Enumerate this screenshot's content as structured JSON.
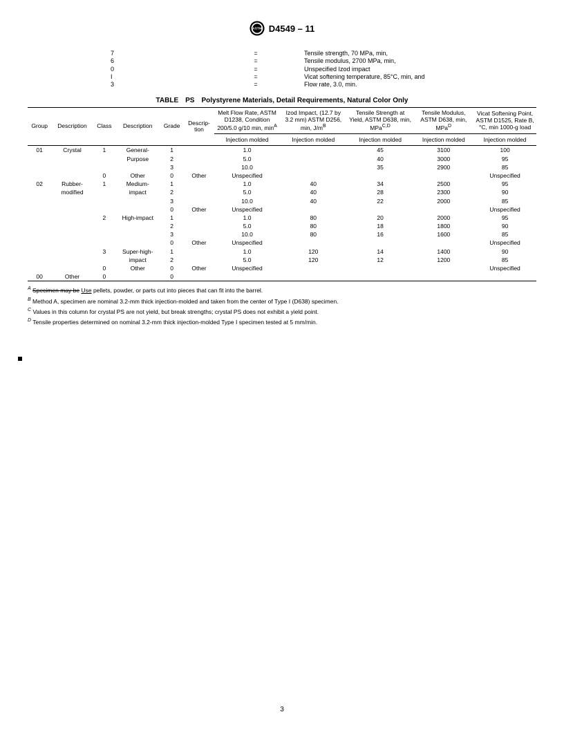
{
  "header": {
    "standard": "D4549 – 11"
  },
  "callouts": [
    {
      "code": "7",
      "eq": "=",
      "desc": "Tensile strength, 70 MPa, min,"
    },
    {
      "code": "6",
      "eq": "=",
      "desc": "Tensile modulus, 2700 MPa, min,"
    },
    {
      "code": "0",
      "eq": "=",
      "desc": "Unspecified Izod impact"
    },
    {
      "code": "I",
      "eq": "=",
      "desc": "Vicat softening temperature, 85°C, min, and"
    },
    {
      "code": "3",
      "eq": "=",
      "desc": "Flow rate, 3.0, min."
    }
  ],
  "table": {
    "caption_label": "TABLE",
    "caption_code": "PS",
    "caption_title": "Polystyrene Materials, Detail Requirements, Natural Color Only",
    "headers1": {
      "group": "Group",
      "desc1": "Description",
      "class": "Class",
      "desc2": "Description",
      "grade": "Grade",
      "desc3": "Descrip-\ntion",
      "melt": "Melt Flow Rate, ASTM D1238, Condition 200/5.0 g/10 min, min",
      "melt_sup": "A",
      "izod": "Izod Impact, (12.7 by 3.2 mm) ASTM D256, min, J/m",
      "izod_sup": "B",
      "tstr": "Tensile Strength at Yield, ASTM D638, min, MPa",
      "tstr_sup": "C,D",
      "tmod": "Tensile Modulus, ASTM D638, min, MPa",
      "tmod_sup": "D",
      "vicat": "Vicat Softening Point, ASTM D1525, Rate B, °C, min 1000-g load"
    },
    "headers2": {
      "melt": "Injection molded",
      "izod": "Injection molded",
      "tstr": "Injection molded",
      "tmod": "Injection molded",
      "vicat": "Injection molded"
    },
    "rows": [
      {
        "group": "01",
        "desc1": "Crystal",
        "class": "1",
        "desc2": "General-",
        "grade": "1",
        "desc3": "",
        "melt": "1.0",
        "izod": "",
        "tstr": "45",
        "tmod": "3100",
        "vicat": "100"
      },
      {
        "group": "",
        "desc1": "",
        "class": "",
        "desc2": "Purpose",
        "grade": "2",
        "desc3": "",
        "melt": "5.0",
        "izod": "",
        "tstr": "40",
        "tmod": "3000",
        "vicat": "95"
      },
      {
        "group": "",
        "desc1": "",
        "class": "",
        "desc2": "",
        "grade": "3",
        "desc3": "",
        "melt": "10.0",
        "izod": "",
        "tstr": "35",
        "tmod": "2900",
        "vicat": "85"
      },
      {
        "group": "",
        "desc1": "",
        "class": "0",
        "desc2": "Other",
        "grade": "0",
        "desc3": "Other",
        "melt": "Unspecified",
        "izod": "",
        "tstr": "",
        "tmod": "",
        "vicat": "Unspecified"
      },
      {
        "group": "02",
        "desc1": "Rubber-",
        "class": "1",
        "desc2": "Medium-",
        "grade": "1",
        "desc3": "",
        "melt": "1.0",
        "izod": "40",
        "tstr": "34",
        "tmod": "2500",
        "vicat": "95"
      },
      {
        "group": "",
        "desc1": "modified",
        "class": "",
        "desc2": "impact",
        "grade": "2",
        "desc3": "",
        "melt": "5.0",
        "izod": "40",
        "tstr": "28",
        "tmod": "2300",
        "vicat": "90"
      },
      {
        "group": "",
        "desc1": "",
        "class": "",
        "desc2": "",
        "grade": "3",
        "desc3": "",
        "melt": "10.0",
        "izod": "40",
        "tstr": "22",
        "tmod": "2000",
        "vicat": "85"
      },
      {
        "group": "",
        "desc1": "",
        "class": "",
        "desc2": "",
        "grade": "0",
        "desc3": "Other",
        "melt": "Unspecified",
        "izod": "",
        "tstr": "",
        "tmod": "",
        "vicat": "Unspecified"
      },
      {
        "group": "",
        "desc1": "",
        "class": "2",
        "desc2": "High-impact",
        "grade": "1",
        "desc3": "",
        "melt": "1.0",
        "izod": "80",
        "tstr": "20",
        "tmod": "2000",
        "vicat": "95"
      },
      {
        "group": "",
        "desc1": "",
        "class": "",
        "desc2": "",
        "grade": "2",
        "desc3": "",
        "melt": "5.0",
        "izod": "80",
        "tstr": "18",
        "tmod": "1800",
        "vicat": "90"
      },
      {
        "group": "",
        "desc1": "",
        "class": "",
        "desc2": "",
        "grade": "3",
        "desc3": "",
        "melt": "10.0",
        "izod": "80",
        "tstr": "16",
        "tmod": "1600",
        "vicat": "85"
      },
      {
        "group": "",
        "desc1": "",
        "class": "",
        "desc2": "",
        "grade": "0",
        "desc3": "Other",
        "melt": "Unspecified",
        "izod": "",
        "tstr": "",
        "tmod": "",
        "vicat": "Unspecified"
      },
      {
        "group": "",
        "desc1": "",
        "class": "3",
        "desc2": "Super-high-",
        "grade": "1",
        "desc3": "",
        "melt": "1.0",
        "izod": "120",
        "tstr": "14",
        "tmod": "1400",
        "vicat": "90"
      },
      {
        "group": "",
        "desc1": "",
        "class": "",
        "desc2": "impact",
        "grade": "2",
        "desc3": "",
        "melt": "5.0",
        "izod": "120",
        "tstr": "12",
        "tmod": "1200",
        "vicat": "85"
      },
      {
        "group": "",
        "desc1": "",
        "class": "0",
        "desc2": "Other",
        "grade": "0",
        "desc3": "Other",
        "melt": "Unspecified",
        "izod": "",
        "tstr": "",
        "tmod": "",
        "vicat": "Unspecified"
      },
      {
        "group": "00",
        "desc1": "Other",
        "class": "0",
        "desc2": "",
        "grade": "0",
        "desc3": "",
        "melt": "",
        "izod": "",
        "tstr": "",
        "tmod": "",
        "vicat": ""
      }
    ]
  },
  "footnotes": {
    "a_strike": "Specimen may be",
    "a_under": "Use",
    "a_rest": " pellets, powder, or parts cut into pieces that can fit into the barrel.",
    "b": "Method A, specimen are nominal 3.2-mm thick injection-molded and taken from the center of Type I (D638) specimen.",
    "c": "Values in this column for crystal PS are not yield, but break strengths; crystal PS does not exhibit a yield point.",
    "d": "Tensile properties determined on nominal 3.2-mm thick injection-molded Type I specimen tested at 5 mm/min."
  },
  "page_number": "3"
}
